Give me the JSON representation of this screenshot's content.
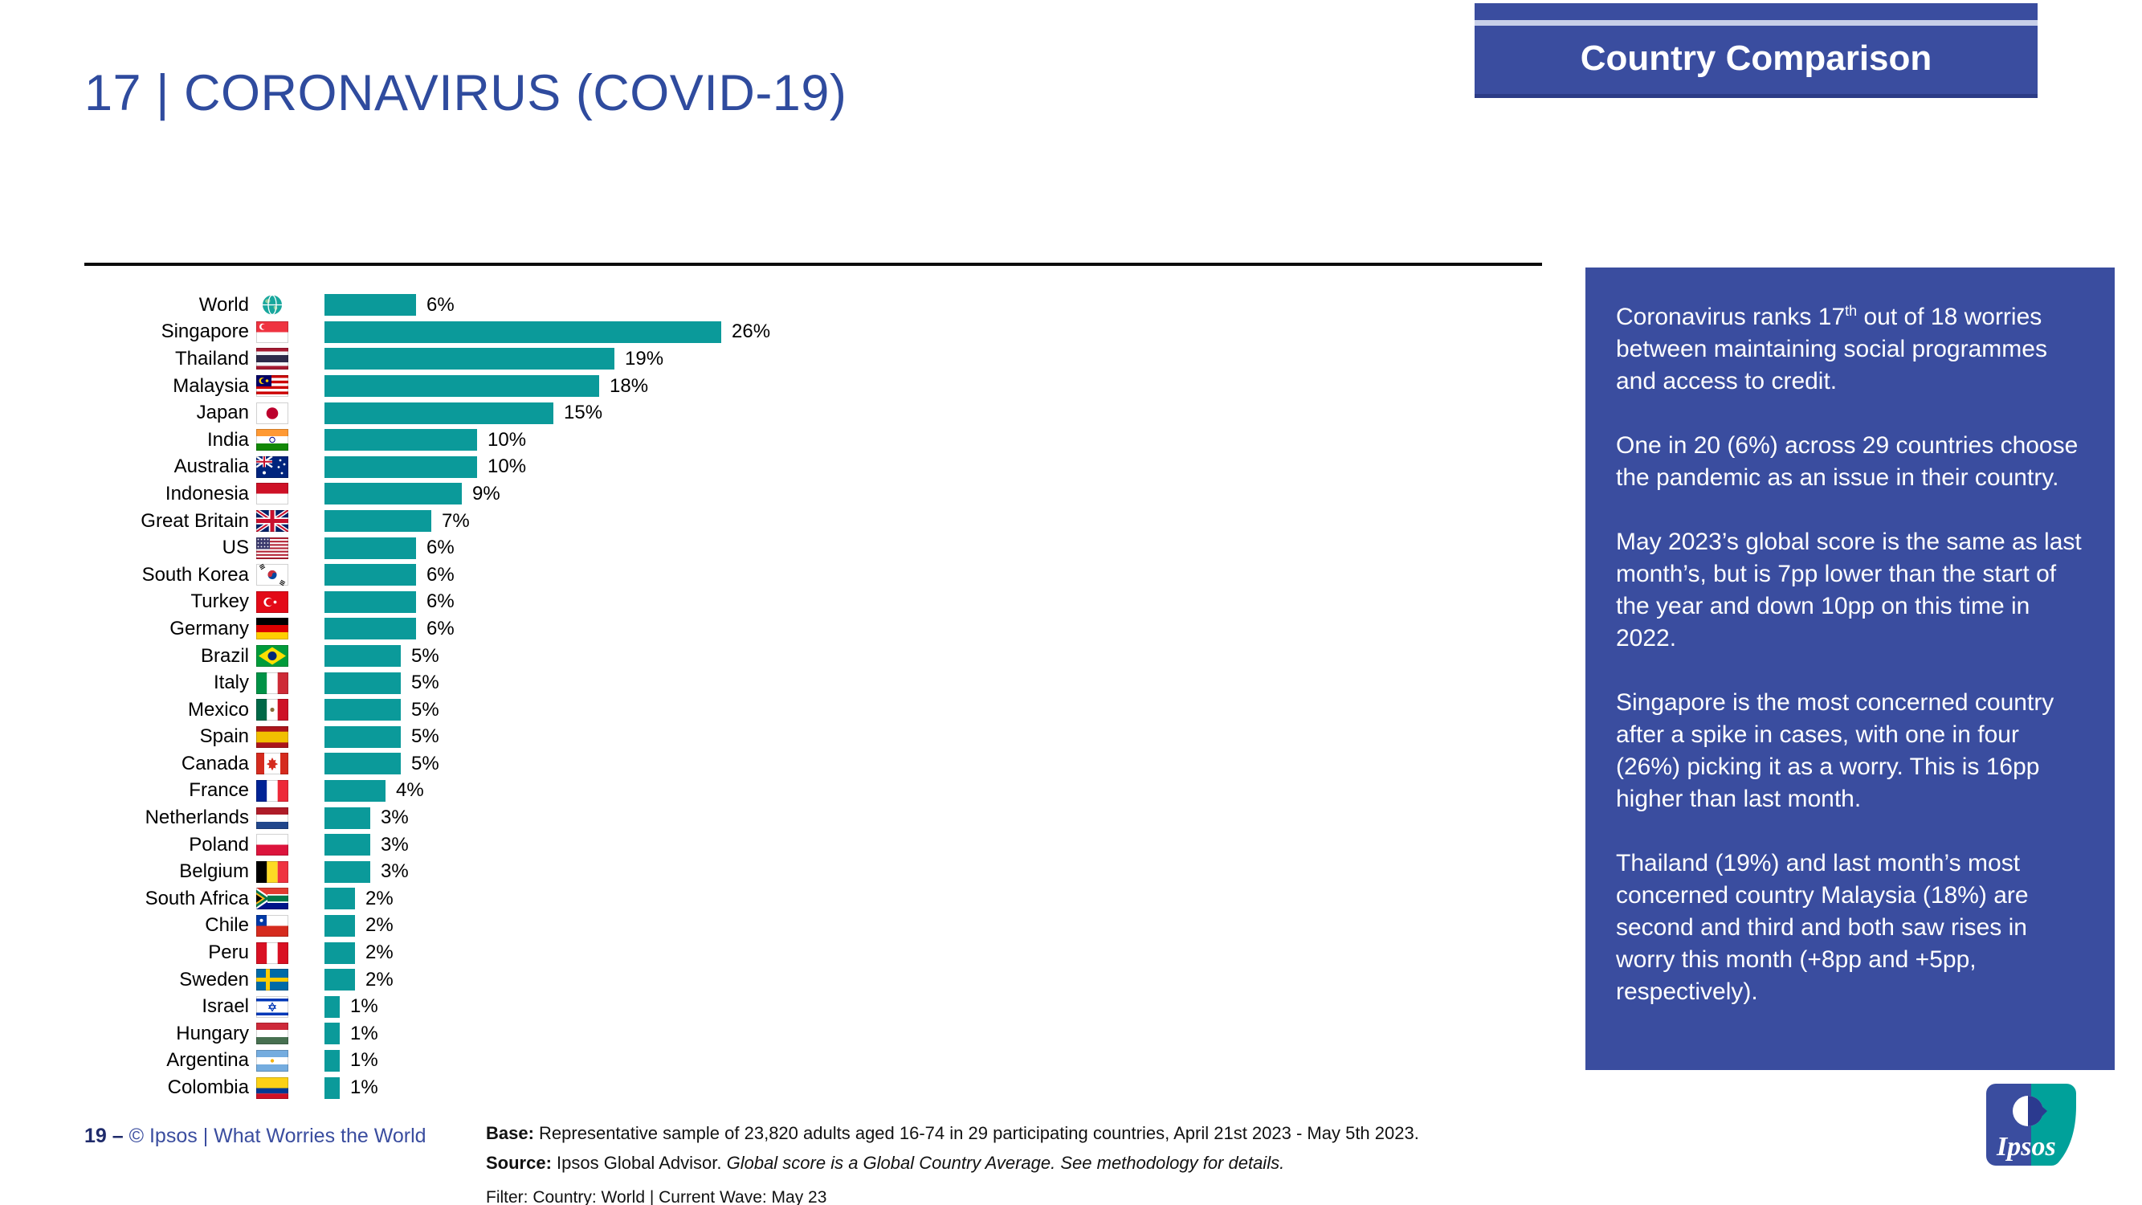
{
  "header": {
    "banner": "Country Comparison",
    "title": "17 | CORONAVIRUS (COVID-19)"
  },
  "chart_data": {
    "type": "bar",
    "orientation": "horizontal",
    "unit": "%",
    "xlim": [
      0,
      28
    ],
    "grid": false,
    "bar_color": "#0B9A9A",
    "categories": [
      "World",
      "Singapore",
      "Thailand",
      "Malaysia",
      "Japan",
      "India",
      "Australia",
      "Indonesia",
      "Great Britain",
      "US",
      "South Korea",
      "Turkey",
      "Germany",
      "Brazil",
      "Italy",
      "Mexico",
      "Spain",
      "Canada",
      "France",
      "Netherlands",
      "Poland",
      "Belgium",
      "South Africa",
      "Chile",
      "Peru",
      "Sweden",
      "Israel",
      "Hungary",
      "Argentina",
      "Colombia"
    ],
    "values": [
      6,
      26,
      19,
      18,
      15,
      10,
      10,
      9,
      7,
      6,
      6,
      6,
      6,
      5,
      5,
      5,
      5,
      5,
      4,
      3,
      3,
      3,
      2,
      2,
      2,
      2,
      1,
      1,
      1,
      1
    ],
    "value_labels": [
      "6%",
      "26%",
      "19%",
      "18%",
      "15%",
      "10%",
      "10%",
      "9%",
      "7%",
      "6%",
      "6%",
      "6%",
      "6%",
      "5%",
      "5%",
      "5%",
      "5%",
      "5%",
      "4%",
      "3%",
      "3%",
      "3%",
      "2%",
      "2%",
      "2%",
      "2%",
      "1%",
      "1%",
      "1%",
      "1%"
    ],
    "flags": [
      "world",
      "sg",
      "th",
      "my",
      "jp",
      "in",
      "au",
      "id",
      "gb",
      "us",
      "kr",
      "tr",
      "de",
      "br",
      "it",
      "mx",
      "es",
      "ca",
      "fr",
      "nl",
      "pl",
      "be",
      "za",
      "cl",
      "pe",
      "se",
      "il",
      "hu",
      "ar",
      "co"
    ]
  },
  "sidebar": {
    "background": "#3A4D9F",
    "p1_before_sup": "Coronavirus ranks 17",
    "p1_sup": "th",
    "p1_after_sup": " out of 18 worries between maintaining social programmes and access to credit.",
    "p2": "One in 20 (6%) across 29 countries choose the pandemic as an issue in their country.",
    "p3": "May 2023’s global score is the same as last month’s, but is 7pp lower than the start of the year and down 10pp on this time in 2022.",
    "p4": "Singapore is the most concerned country after a spike in cases, with one in four (26%) picking it as a worry. This is 16pp higher than last month.",
    "p5": "Thailand (19%) and last month’s most concerned country Malaysia (18%) are second and third and both saw rises in worry this month (+8pp and +5pp, respectively)."
  },
  "footer": {
    "page_label": "19 –",
    "copyright": "© Ipsos | What Worries the World",
    "base_label": "Base:",
    "base_text": " Representative sample of 23,820 adults aged 16-74 in 29 participating countries, April 21st 2023 - May 5th 2023.",
    "source_label": "Source:",
    "source_text": " Ipsos Global Advisor. ",
    "source_italic": "Global score is a Global Country Average. See methodology for details.",
    "filter_text": "Filter: Country: World | Current Wave: May 23"
  },
  "logo": {
    "text": "Ipsos"
  },
  "colors": {
    "accent_teal": "#0B9A9A",
    "brand_blue": "#3A4D9F",
    "title_blue": "#2F4B9E"
  }
}
